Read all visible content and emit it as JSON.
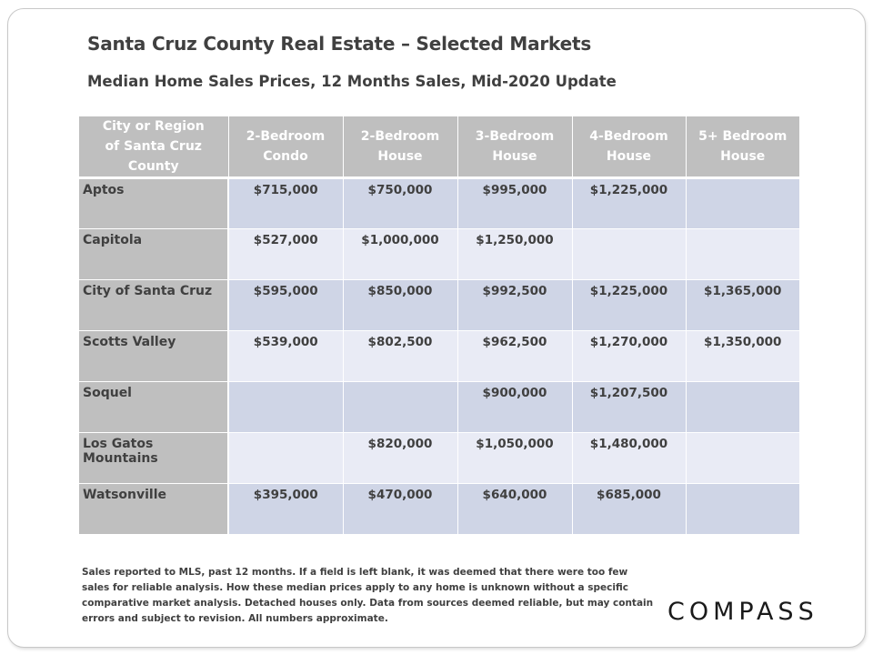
{
  "title": "Santa Cruz County Real Estate – Selected Markets",
  "subtitle": "Median Home Sales Prices, 12 Months Sales, Mid-2020 Update",
  "table": {
    "headers": [
      {
        "line1": "City or Region",
        "line2": "of Santa Cruz County"
      },
      {
        "line1": "2-Bedroom",
        "line2": "Condo"
      },
      {
        "line1": "2-Bedroom",
        "line2": "House"
      },
      {
        "line1": "3-Bedroom",
        "line2": "House"
      },
      {
        "line1": "4-Bedroom",
        "line2": "House"
      },
      {
        "line1": "5+ Bedroom",
        "line2": "House"
      }
    ],
    "rows": [
      {
        "region": "Aptos",
        "values": [
          "$715,000",
          "$750,000",
          "$995,000",
          "$1,225,000",
          ""
        ]
      },
      {
        "region": "Capitola",
        "values": [
          "$527,000",
          "$1,000,000",
          "$1,250,000",
          "",
          ""
        ]
      },
      {
        "region": "City of Santa Cruz",
        "values": [
          "$595,000",
          "$850,000",
          "$992,500",
          "$1,225,000",
          "$1,365,000"
        ]
      },
      {
        "region": "Scotts Valley",
        "values": [
          "$539,000",
          "$802,500",
          "$962,500",
          "$1,270,000",
          "$1,350,000"
        ]
      },
      {
        "region": "Soquel",
        "values": [
          "",
          "",
          "$900,000",
          "$1,207,500",
          ""
        ]
      },
      {
        "region": "Los Gatos Mountains",
        "values": [
          "",
          "$820,000",
          "$1,050,000",
          "$1,480,000",
          ""
        ]
      },
      {
        "region": "Watsonville",
        "values": [
          "$395,000",
          "$470,000",
          "$640,000",
          "$685,000",
          ""
        ]
      }
    ]
  },
  "footnote": "Sales reported to MLS, past 12 months. If a field is left blank, it was deemed that there were too few sales for reliable analysis. How these median prices apply to any home is unknown without a specific comparative market analysis. Detached houses only. Data from sources deemed reliable, but may contain errors and subject to revision. All numbers approximate.",
  "logo": "COMPASS",
  "colors": {
    "header_bg": "#bfbfbf",
    "row_dark": "#cfd5e6",
    "row_light": "#e9ebf5",
    "text": "#404040"
  }
}
